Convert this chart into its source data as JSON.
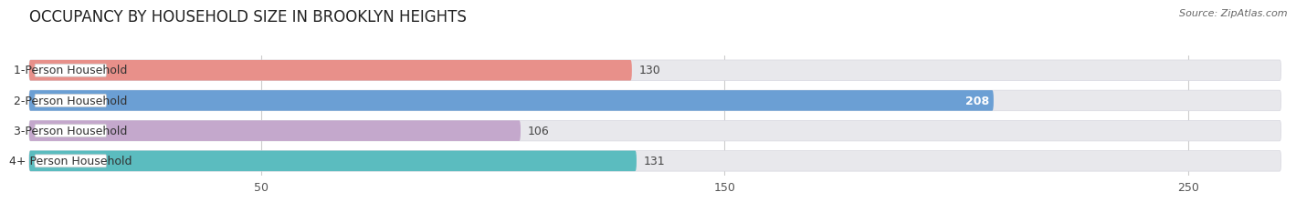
{
  "title": "OCCUPANCY BY HOUSEHOLD SIZE IN BROOKLYN HEIGHTS",
  "source": "Source: ZipAtlas.com",
  "categories": [
    "1-Person Household",
    "2-Person Household",
    "3-Person Household",
    "4+ Person Household"
  ],
  "values": [
    130,
    208,
    106,
    131
  ],
  "bar_colors": [
    "#e8908a",
    "#6b9fd4",
    "#c4a8cc",
    "#5bbcbf"
  ],
  "bar_bg_color": "#e8e8ec",
  "bar_bg_border": "#d8d8e0",
  "xlim_max": 270,
  "xticks": [
    50,
    150,
    250
  ],
  "title_fontsize": 12,
  "source_fontsize": 8,
  "label_fontsize": 9,
  "value_fontsize": 9,
  "tick_fontsize": 9,
  "background_color": "#ffffff"
}
